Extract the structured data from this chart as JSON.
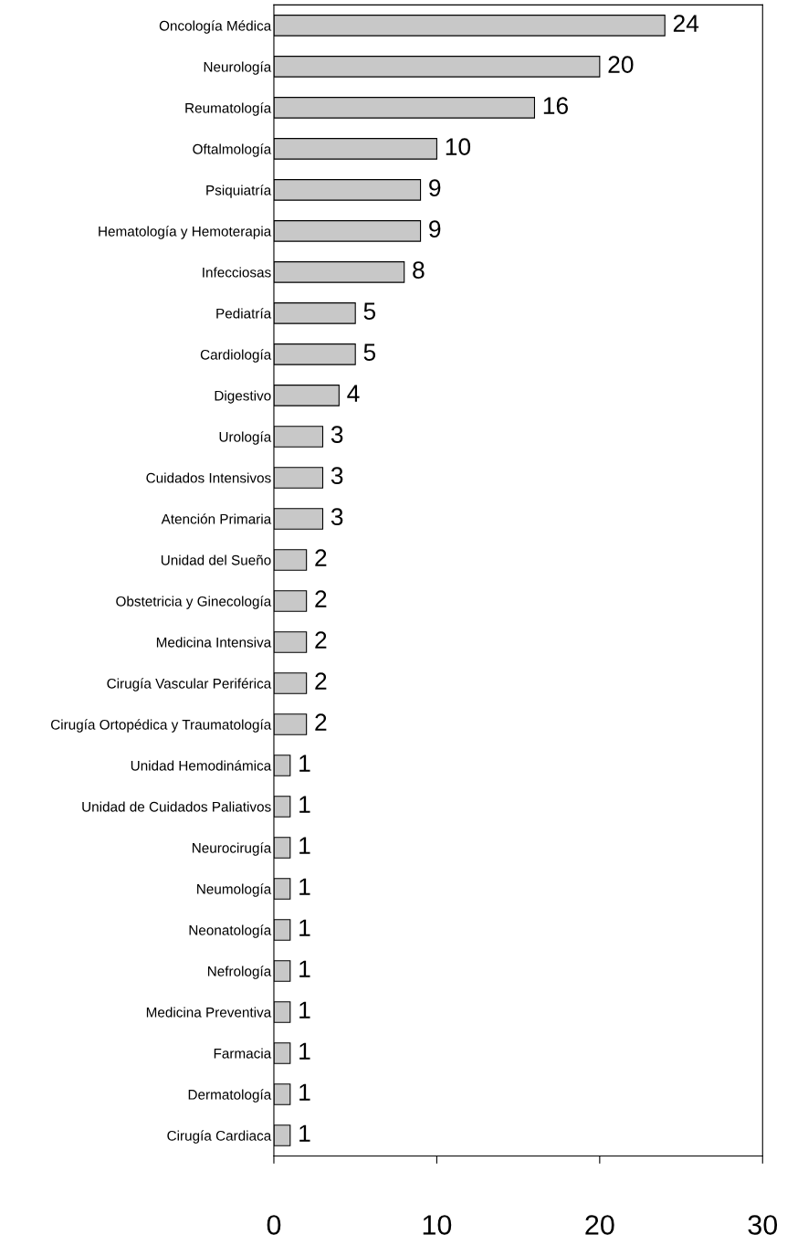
{
  "chart_data": {
    "type": "bar",
    "orientation": "horizontal",
    "categories": [
      "Oncología Médica",
      "Neurología",
      "Reumatología",
      "Oftalmología",
      "Psiquiatría",
      "Hematología y Hemoterapia",
      "Infecciosas",
      "Pediatría",
      "Cardiología",
      "Digestivo",
      "Urología",
      "Cuidados Intensivos",
      "Atención Primaria",
      "Unidad del Sueño",
      "Obstetricia y Ginecología",
      "Medicina Intensiva",
      "Cirugía Vascular Periférica",
      "Cirugía Ortopédica y Traumatología",
      "Unidad Hemodinámica",
      "Unidad de Cuidados Paliativos",
      "Neurocirugía",
      "Neumología",
      "Neonatología",
      "Nefrología",
      "Medicina Preventiva",
      "Farmacia",
      "Dermatología",
      "Cirugía Cardiaca"
    ],
    "values": [
      24,
      20,
      16,
      10,
      9,
      9,
      8,
      5,
      5,
      4,
      3,
      3,
      3,
      2,
      2,
      2,
      2,
      2,
      1,
      1,
      1,
      1,
      1,
      1,
      1,
      1,
      1,
      1
    ],
    "color": "#c8c8c8",
    "data_labels": true,
    "xlim": [
      0,
      30
    ],
    "xticks": [
      0,
      10,
      20,
      30
    ],
    "grid": false,
    "legend": false
  }
}
